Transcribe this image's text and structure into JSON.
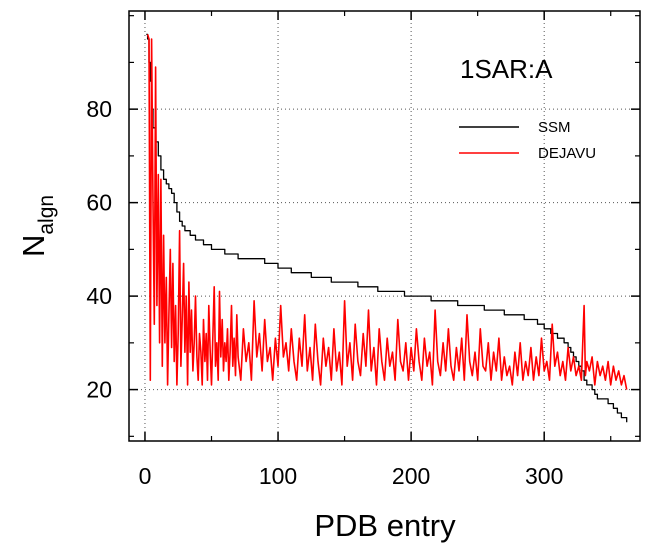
{
  "chart_data": {
    "type": "line",
    "title": "",
    "annotation": "1SAR:A",
    "xlabel": "PDB entry",
    "ylabel_main": "N",
    "ylabel_sub": "algn",
    "xlim": [
      -12,
      372
    ],
    "ylim": [
      9,
      101
    ],
    "x_ticks": [
      0,
      100,
      200,
      300
    ],
    "y_ticks": [
      20,
      40,
      60,
      80
    ],
    "x_tick_labels": [
      "0",
      "100",
      "200",
      "300"
    ],
    "y_tick_labels": [
      "20",
      "40",
      "60",
      "80"
    ],
    "grid": true,
    "legend_position": "top-right",
    "series": [
      {
        "name": "SSM",
        "color": "#000000",
        "style": "step",
        "points": [
          [
            1,
            96
          ],
          [
            2,
            95
          ],
          [
            3,
            90
          ],
          [
            4,
            86
          ],
          [
            5,
            80
          ],
          [
            6,
            76
          ],
          [
            8,
            73
          ],
          [
            10,
            70
          ],
          [
            12,
            67
          ],
          [
            14,
            65
          ],
          [
            16,
            64
          ],
          [
            18,
            63
          ],
          [
            20,
            62
          ],
          [
            22,
            60
          ],
          [
            24,
            58
          ],
          [
            26,
            56
          ],
          [
            28,
            55
          ],
          [
            30,
            54
          ],
          [
            34,
            53
          ],
          [
            38,
            52
          ],
          [
            44,
            51
          ],
          [
            50,
            50
          ],
          [
            60,
            49
          ],
          [
            70,
            48
          ],
          [
            90,
            47
          ],
          [
            100,
            46
          ],
          [
            110,
            45
          ],
          [
            125,
            44
          ],
          [
            140,
            43
          ],
          [
            160,
            42
          ],
          [
            175,
            41
          ],
          [
            195,
            40
          ],
          [
            215,
            39
          ],
          [
            235,
            38
          ],
          [
            255,
            37
          ],
          [
            270,
            36
          ],
          [
            285,
            35
          ],
          [
            295,
            34
          ],
          [
            300,
            33
          ],
          [
            305,
            32
          ],
          [
            310,
            31
          ],
          [
            315,
            30
          ],
          [
            318,
            29
          ],
          [
            320,
            28
          ],
          [
            322,
            27
          ],
          [
            324,
            26
          ],
          [
            326,
            25
          ],
          [
            328,
            24
          ],
          [
            330,
            22
          ],
          [
            332,
            21
          ],
          [
            336,
            20
          ],
          [
            338,
            19
          ],
          [
            340,
            18
          ],
          [
            348,
            17
          ],
          [
            352,
            16
          ],
          [
            355,
            15
          ],
          [
            358,
            14
          ],
          [
            362,
            13
          ]
        ]
      },
      {
        "name": "DEJAVU",
        "color": "#ff0000",
        "style": "line",
        "points": [
          [
            2,
            96
          ],
          [
            3,
            95
          ],
          [
            4,
            22
          ],
          [
            5,
            95
          ],
          [
            6,
            60
          ],
          [
            7,
            34
          ],
          [
            8,
            89
          ],
          [
            9,
            38
          ],
          [
            10,
            66
          ],
          [
            11,
            30
          ],
          [
            12,
            65
          ],
          [
            13,
            25
          ],
          [
            14,
            53
          ],
          [
            15,
            30
          ],
          [
            16,
            44
          ],
          [
            17,
            21
          ],
          [
            18,
            36
          ],
          [
            19,
            50
          ],
          [
            20,
            29
          ],
          [
            21,
            47
          ],
          [
            22,
            26
          ],
          [
            23,
            38
          ],
          [
            24,
            21
          ],
          [
            25,
            32
          ],
          [
            26,
            54
          ],
          [
            27,
            25
          ],
          [
            28,
            35
          ],
          [
            29,
            47
          ],
          [
            30,
            28
          ],
          [
            31,
            40
          ],
          [
            32,
            21
          ],
          [
            33,
            43
          ],
          [
            34,
            28
          ],
          [
            35,
            37
          ],
          [
            36,
            24
          ],
          [
            37,
            30
          ],
          [
            38,
            40
          ],
          [
            39,
            27
          ],
          [
            40,
            22
          ],
          [
            41,
            32
          ],
          [
            42,
            28
          ],
          [
            43,
            21
          ],
          [
            44,
            35
          ],
          [
            45,
            26
          ],
          [
            46,
            32
          ],
          [
            47,
            22
          ],
          [
            48,
            38
          ],
          [
            49,
            28
          ],
          [
            50,
            21
          ],
          [
            51,
            31
          ],
          [
            52,
            42
          ],
          [
            53,
            25
          ],
          [
            54,
            30
          ],
          [
            55,
            22
          ],
          [
            56,
            41
          ],
          [
            57,
            27
          ],
          [
            58,
            35
          ],
          [
            59,
            24
          ],
          [
            60,
            30
          ],
          [
            61,
            26
          ],
          [
            62,
            33
          ],
          [
            63,
            22
          ],
          [
            64,
            28
          ],
          [
            65,
            38
          ],
          [
            66,
            25
          ],
          [
            67,
            31
          ],
          [
            68,
            23
          ],
          [
            69,
            36
          ],
          [
            70,
            27
          ],
          [
            72,
            22
          ],
          [
            74,
            33
          ],
          [
            76,
            26
          ],
          [
            78,
            30
          ],
          [
            80,
            22
          ],
          [
            82,
            39
          ],
          [
            84,
            27
          ],
          [
            86,
            32
          ],
          [
            88,
            24
          ],
          [
            90,
            35
          ],
          [
            92,
            26
          ],
          [
            94,
            29
          ],
          [
            96,
            22
          ],
          [
            98,
            31
          ],
          [
            100,
            25
          ],
          [
            102,
            38
          ],
          [
            104,
            27
          ],
          [
            106,
            30
          ],
          [
            108,
            24
          ],
          [
            110,
            33
          ],
          [
            112,
            26
          ],
          [
            114,
            22
          ],
          [
            116,
            31
          ],
          [
            118,
            25
          ],
          [
            120,
            36
          ],
          [
            122,
            24
          ],
          [
            124,
            29
          ],
          [
            126,
            22
          ],
          [
            128,
            34
          ],
          [
            130,
            26
          ],
          [
            132,
            21
          ],
          [
            134,
            31
          ],
          [
            136,
            25
          ],
          [
            138,
            29
          ],
          [
            140,
            22
          ],
          [
            142,
            33
          ],
          [
            144,
            24
          ],
          [
            146,
            28
          ],
          [
            148,
            21
          ],
          [
            150,
            39
          ],
          [
            152,
            25
          ],
          [
            154,
            30
          ],
          [
            156,
            22
          ],
          [
            158,
            34
          ],
          [
            160,
            26
          ],
          [
            162,
            23
          ],
          [
            164,
            32
          ],
          [
            166,
            25
          ],
          [
            168,
            37
          ],
          [
            170,
            24
          ],
          [
            172,
            29
          ],
          [
            174,
            21
          ],
          [
            176,
            33
          ],
          [
            178,
            26
          ],
          [
            180,
            22
          ],
          [
            182,
            31
          ],
          [
            184,
            25
          ],
          [
            186,
            28
          ],
          [
            188,
            22
          ],
          [
            190,
            35
          ],
          [
            192,
            26
          ],
          [
            194,
            24
          ],
          [
            196,
            30
          ],
          [
            198,
            22
          ],
          [
            200,
            29
          ],
          [
            202,
            24
          ],
          [
            204,
            33
          ],
          [
            206,
            26
          ],
          [
            208,
            22
          ],
          [
            210,
            31
          ],
          [
            212,
            25
          ],
          [
            214,
            28
          ],
          [
            216,
            21
          ],
          [
            218,
            37
          ],
          [
            220,
            26
          ],
          [
            222,
            23
          ],
          [
            224,
            30
          ],
          [
            226,
            24
          ],
          [
            228,
            33
          ],
          [
            230,
            25
          ],
          [
            232,
            22
          ],
          [
            234,
            29
          ],
          [
            236,
            24
          ],
          [
            238,
            31
          ],
          [
            240,
            22
          ],
          [
            242,
            36
          ],
          [
            244,
            26
          ],
          [
            246,
            23
          ],
          [
            248,
            28
          ],
          [
            250,
            22
          ],
          [
            252,
            33
          ],
          [
            254,
            25
          ],
          [
            256,
            24
          ],
          [
            258,
            30
          ],
          [
            260,
            22
          ],
          [
            262,
            28
          ],
          [
            264,
            24
          ],
          [
            266,
            31
          ],
          [
            268,
            22
          ],
          [
            270,
            27
          ],
          [
            272,
            23
          ],
          [
            274,
            25
          ],
          [
            276,
            21
          ],
          [
            278,
            28
          ],
          [
            280,
            23
          ],
          [
            282,
            30
          ],
          [
            284,
            22
          ],
          [
            286,
            26
          ],
          [
            288,
            23
          ],
          [
            290,
            29
          ],
          [
            292,
            22
          ],
          [
            294,
            27
          ],
          [
            296,
            23
          ],
          [
            298,
            31
          ],
          [
            300,
            24
          ],
          [
            302,
            26
          ],
          [
            304,
            22
          ],
          [
            306,
            34
          ],
          [
            308,
            25
          ],
          [
            310,
            28
          ],
          [
            312,
            23
          ],
          [
            314,
            26
          ],
          [
            316,
            22
          ],
          [
            318,
            29
          ],
          [
            320,
            24
          ],
          [
            322,
            27
          ],
          [
            324,
            23
          ],
          [
            326,
            25
          ],
          [
            328,
            22
          ],
          [
            330,
            38
          ],
          [
            331,
            23
          ],
          [
            332,
            26
          ],
          [
            334,
            24
          ],
          [
            336,
            27
          ],
          [
            338,
            21
          ],
          [
            340,
            26
          ],
          [
            342,
            23
          ],
          [
            344,
            25
          ],
          [
            346,
            22
          ],
          [
            348,
            26
          ],
          [
            350,
            21
          ],
          [
            352,
            25
          ],
          [
            354,
            22
          ],
          [
            356,
            24
          ],
          [
            358,
            21
          ],
          [
            360,
            23
          ],
          [
            362,
            20
          ]
        ]
      }
    ]
  }
}
